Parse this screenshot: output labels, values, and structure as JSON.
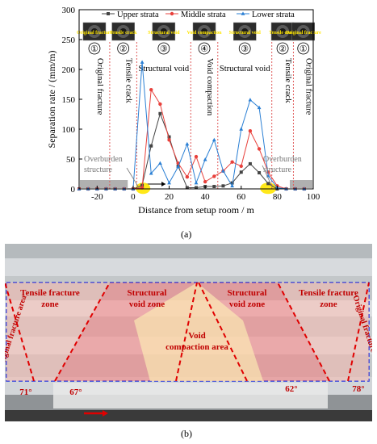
{
  "panel_a_label": "(a)",
  "panel_b_label": "(b)",
  "chart_data": {
    "type": "line",
    "xlabel": "Distance from setup room / m",
    "ylabel": "Separation rate / (mm/m)",
    "xlim": [
      -30,
      100
    ],
    "ylim": [
      0,
      300
    ],
    "xticks": [
      -20,
      0,
      20,
      40,
      60,
      80,
      100
    ],
    "yticks": [
      0,
      50,
      100,
      150,
      200,
      250,
      300
    ],
    "legend_position": "top",
    "series": [
      {
        "name": "Upper strata",
        "color": "#444444",
        "marker": "square",
        "x": [
          -30,
          -25,
          -20,
          -15,
          -10,
          -5,
          0,
          5,
          10,
          15,
          20,
          25,
          30,
          35,
          40,
          45,
          50,
          55,
          60,
          65,
          70,
          75,
          80,
          85,
          90,
          95
        ],
        "y": [
          0,
          0,
          0,
          0,
          0,
          0,
          0,
          6,
          72,
          126,
          87,
          38,
          2,
          2,
          4,
          4,
          5,
          10,
          28,
          42,
          27,
          9,
          0,
          0,
          0,
          0
        ]
      },
      {
        "name": "Middle strata",
        "color": "#e8413c",
        "marker": "circle",
        "x": [
          -30,
          -25,
          -20,
          -15,
          -10,
          -5,
          0,
          5,
          10,
          15,
          20,
          25,
          30,
          35,
          40,
          45,
          50,
          55,
          60,
          65,
          70,
          75,
          80,
          85,
          90,
          95
        ],
        "y": [
          0,
          0,
          0,
          0,
          0,
          0,
          0,
          2,
          166,
          142,
          82,
          43,
          20,
          54,
          12,
          21,
          30,
          45,
          38,
          97,
          67,
          28,
          5,
          0,
          0,
          0
        ]
      },
      {
        "name": "Lower strata",
        "color": "#2a7fd4",
        "marker": "triangle",
        "x": [
          -30,
          -25,
          -20,
          -15,
          -10,
          -5,
          0,
          5,
          10,
          15,
          20,
          25,
          30,
          35,
          40,
          45,
          50,
          55,
          60,
          65,
          70,
          75,
          80,
          85,
          90,
          95
        ],
        "y": [
          0,
          0,
          0,
          0,
          0,
          0,
          0,
          212,
          26,
          43,
          10,
          37,
          75,
          10,
          49,
          82,
          30,
          5,
          100,
          149,
          136,
          22,
          2,
          0,
          0,
          0
        ]
      }
    ],
    "zones": [
      {
        "number": "①",
        "label": "Original fracture",
        "photo_label": "Original fracture",
        "x_from": -30,
        "x_to": -13
      },
      {
        "number": "②",
        "label": "Tensile crack",
        "photo_label": "Tensile crack",
        "x_from": -13,
        "x_to": 2
      },
      {
        "number": "③",
        "label": "Structural void",
        "photo_label": "Structural void",
        "x_from": 2,
        "x_to": 32
      },
      {
        "number": "④",
        "label": "Void compaction",
        "photo_label": "Void compaction",
        "x_from": 32,
        "x_to": 47
      },
      {
        "number": "③",
        "label": "Structural void",
        "photo_label": "Structural void",
        "x_from": 47,
        "x_to": 77
      },
      {
        "number": "②",
        "label": "Tensile crack",
        "photo_label": "Tensile crack",
        "x_from": 77,
        "x_to": 89
      },
      {
        "number": "①",
        "label": "Original fracture",
        "photo_label": "Original fracture",
        "x_from": 89,
        "x_to": 100
      }
    ],
    "zone_boundaries": [
      -13,
      2,
      32,
      47,
      77,
      89
    ],
    "annotations": [
      {
        "text": "Overburden structure",
        "x": 5,
        "side": "left"
      },
      {
        "text": "Overburden structure",
        "x": 75,
        "side": "right"
      }
    ],
    "colors": {
      "boundary": "#e05a5a",
      "highlight": "#ffe600",
      "gob_bar": "#b0b0b0"
    }
  },
  "photo": {
    "zones": [
      "Original fracture area",
      "Tensile fracture zone",
      "Structural void zone",
      "Void compaction area",
      "Structural void zone",
      "Tensile fracture zone",
      "Original fracture area"
    ],
    "angles": [
      "71°",
      "67°",
      "62°",
      "78°"
    ],
    "colors": {
      "red_zone": "#ff6b6b",
      "yellow_zone": "#fff5b5",
      "dashed": "#e00000",
      "blue_dash": "#2233dd"
    }
  }
}
